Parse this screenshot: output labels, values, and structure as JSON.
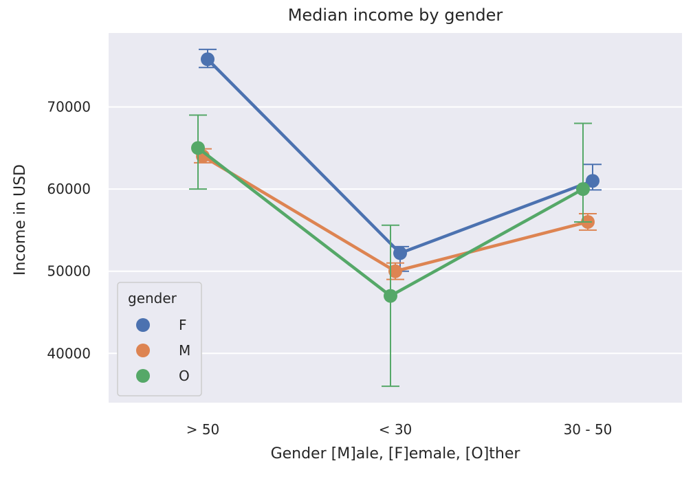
{
  "chart_data": {
    "type": "line",
    "title": "Median income by gender",
    "xlabel": "Gender [M]ale, [F]emale, [O]ther",
    "ylabel": "Income in USD",
    "categories": [
      "> 50",
      "< 30",
      "30 - 50"
    ],
    "ylim": [
      34000,
      79000
    ],
    "yticks": [
      40000,
      50000,
      60000,
      70000
    ],
    "grid": true,
    "legend": {
      "title": "gender",
      "placement": "lower-left"
    },
    "series": [
      {
        "name": "F",
        "color": "#4c72b0",
        "values": [
          75800,
          52200,
          61000
        ],
        "ci_low": [
          74800,
          50000,
          59900
        ],
        "ci_high": [
          77000,
          53000,
          63000
        ]
      },
      {
        "name": "M",
        "color": "#dd8452",
        "values": [
          64000,
          50000,
          56000
        ],
        "ci_low": [
          63200,
          49000,
          55000
        ],
        "ci_high": [
          64900,
          51000,
          57000
        ]
      },
      {
        "name": "O",
        "color": "#55a868",
        "values": [
          65000,
          47000,
          60000
        ],
        "ci_low": [
          60000,
          36000,
          56000
        ],
        "ci_high": [
          69000,
          55600,
          68000
        ]
      }
    ]
  }
}
